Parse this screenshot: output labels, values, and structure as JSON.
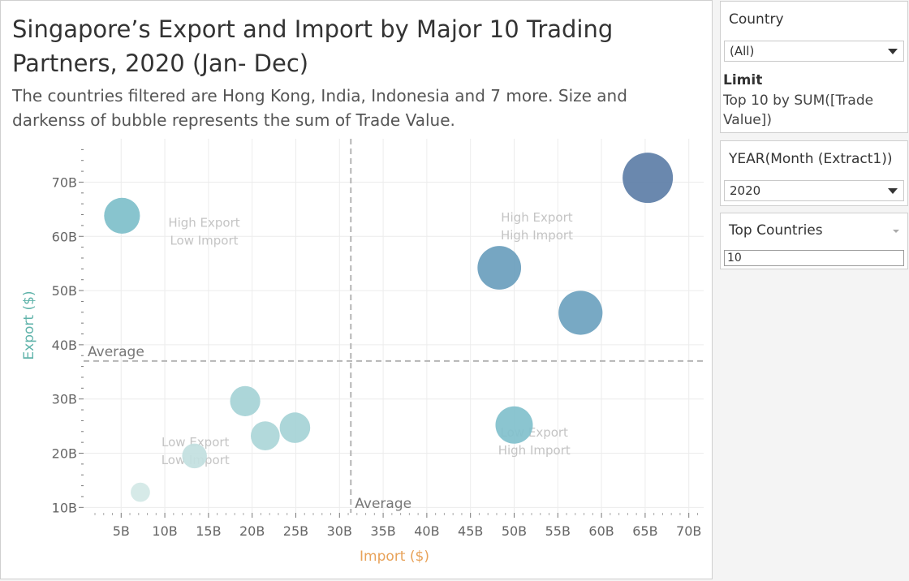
{
  "main": {
    "title": "Singapore’s Export and Import by Major 10 Trading Partners, 2020 (Jan- Dec)",
    "subtitle": "The countries filtered are Hong Kong, India, Indonesia and 7 more. Size and darkenss of bubble represents the sum of Trade Value."
  },
  "chart_data": {
    "type": "scatter",
    "xlabel": "Import ($)",
    "ylabel": "Export ($)",
    "xlim": [
      0.7,
      71.7
    ],
    "ylim": [
      9,
      78
    ],
    "x_ticks": [
      "5B",
      "10B",
      "15B",
      "20B",
      "25B",
      "30B",
      "35B",
      "40B",
      "45B",
      "50B",
      "55B",
      "60B",
      "65B",
      "70B"
    ],
    "y_ticks": [
      "10B",
      "20B",
      "30B",
      "40B",
      "50B",
      "60B",
      "70B"
    ],
    "x_tick_values": [
      5,
      10,
      15,
      20,
      25,
      30,
      35,
      40,
      45,
      50,
      55,
      60,
      65,
      70
    ],
    "y_tick_values": [
      10,
      20,
      30,
      40,
      50,
      60,
      70
    ],
    "reference_lines": [
      {
        "axis": "x",
        "value": 31.3,
        "label": "Average"
      },
      {
        "axis": "y",
        "value": 37,
        "label": "Average"
      }
    ],
    "quadrant_labels": [
      {
        "line1": "High Export",
        "line2": "Low Import",
        "x": 14.5,
        "y": 61
      },
      {
        "line1": "High Export",
        "line2": "High Import",
        "x": 52.6,
        "y": 62
      },
      {
        "line1": "Low Export",
        "line2": "Low Import",
        "x": 13.5,
        "y": 20.5
      },
      {
        "line1": "Low Export",
        "line2": "High Import",
        "x": 52.3,
        "y": 22.3
      }
    ],
    "points": [
      {
        "x": 65.3,
        "y": 70.8,
        "value": 136,
        "color": "#5f7fa8"
      },
      {
        "x": 48.3,
        "y": 54.2,
        "value": 102,
        "color": "#6c9fbd"
      },
      {
        "x": 57.6,
        "y": 45.9,
        "value": 104,
        "color": "#6ea3c0"
      },
      {
        "x": 5.1,
        "y": 63.8,
        "value": 69,
        "color": "#7fbfca"
      },
      {
        "x": 50.0,
        "y": 25.2,
        "value": 75,
        "color": "#82c1cc"
      },
      {
        "x": 19.2,
        "y": 29.6,
        "value": 49,
        "color": "#a6d3d6"
      },
      {
        "x": 24.9,
        "y": 24.7,
        "value": 50,
        "color": "#a6d3d6"
      },
      {
        "x": 21.5,
        "y": 23.2,
        "value": 45,
        "color": "#acd6d8"
      },
      {
        "x": 13.4,
        "y": 19.5,
        "value": 33,
        "color": "#c3e0e0"
      },
      {
        "x": 7.2,
        "y": 12.8,
        "value": 20,
        "color": "#d3e8e6"
      }
    ],
    "colors": {
      "xlabel": "#e8a259",
      "ylabel": "#5fb3aa",
      "grid": "#ececec",
      "reference": "#b5b5b5",
      "quadrant": "#c4c4c4"
    }
  },
  "filters": {
    "country": {
      "title": "Country",
      "value": "(All)",
      "limit_label": "Limit",
      "limit_text": "Top 10 by SUM([Trade Value])"
    },
    "year": {
      "title": "YEAR(Month (Extract1))",
      "value": "2020"
    },
    "top": {
      "title": "Top Countries",
      "value": "10"
    }
  }
}
